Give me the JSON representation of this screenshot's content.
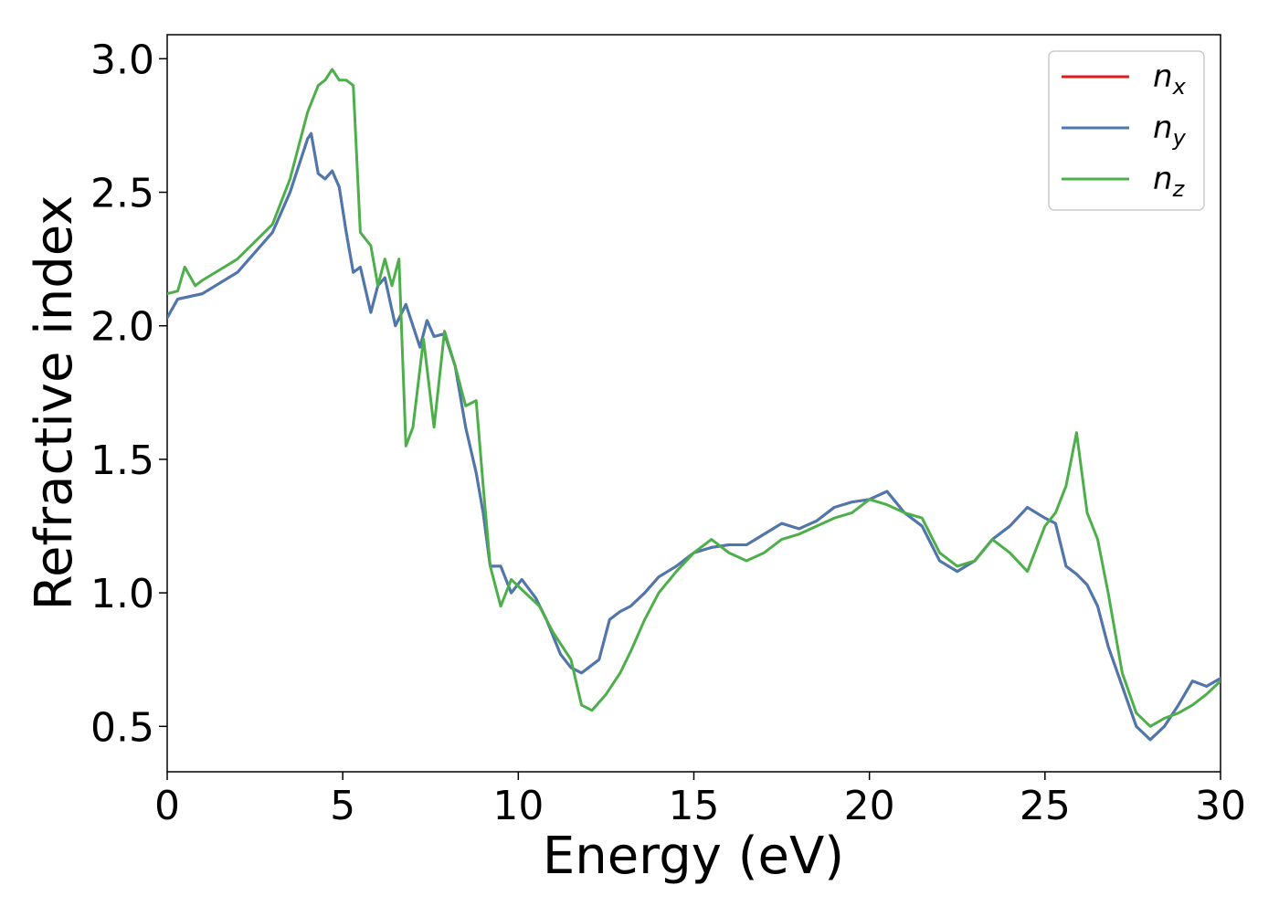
{
  "chart_data": {
    "type": "line",
    "title": "",
    "xlabel": "Energy (eV)",
    "ylabel": "Refractive index",
    "xlim": [
      0,
      30
    ],
    "ylim": [
      0.33,
      3.09
    ],
    "xticks": [
      0,
      5,
      10,
      15,
      20,
      25,
      30
    ],
    "xtick_labels": [
      "0",
      "5",
      "10",
      "15",
      "20",
      "25",
      "30"
    ],
    "yticks": [
      0.5,
      1.0,
      1.5,
      2.0,
      2.5,
      3.0
    ],
    "ytick_labels": [
      "0.5",
      "1.0",
      "1.5",
      "2.0",
      "2.5",
      "3.0"
    ],
    "grid": false,
    "legend_position": "top-right",
    "series": [
      {
        "name": "n_x",
        "label_base": "n",
        "label_sub": "x",
        "color": "#e41a1c",
        "x": [
          0,
          0.3,
          1,
          2,
          3,
          3.5,
          4,
          4.1,
          4.3,
          4.5,
          4.7,
          4.9,
          5.1,
          5.3,
          5.5,
          5.8,
          6,
          6.2,
          6.5,
          6.8,
          7.2,
          7.4,
          7.6,
          7.9,
          8.2,
          8.5,
          8.8,
          9,
          9.2,
          9.5,
          9.8,
          10.1,
          10.5,
          10.8,
          11.2,
          11.5,
          11.8,
          12,
          12.3,
          12.6,
          12.9,
          13.2,
          13.6,
          14,
          14.5,
          15,
          15.5,
          16,
          16.5,
          17,
          17.5,
          18,
          18.5,
          19,
          19.5,
          20,
          20.5,
          21,
          21.5,
          22,
          22.5,
          23,
          23.5,
          24,
          24.5,
          25,
          25.3,
          25.6,
          25.9,
          26.2,
          26.5,
          26.8,
          27.2,
          27.6,
          28,
          28.4,
          28.8,
          29.2,
          29.6,
          30
        ],
        "y": [
          2.03,
          2.1,
          2.12,
          2.2,
          2.35,
          2.5,
          2.7,
          2.72,
          2.57,
          2.55,
          2.58,
          2.52,
          2.35,
          2.2,
          2.22,
          2.05,
          2.15,
          2.18,
          2.0,
          2.08,
          1.92,
          2.02,
          1.96,
          1.97,
          1.85,
          1.62,
          1.45,
          1.3,
          1.1,
          1.1,
          1.0,
          1.05,
          0.98,
          0.9,
          0.77,
          0.72,
          0.7,
          0.72,
          0.75,
          0.9,
          0.93,
          0.95,
          1.0,
          1.06,
          1.1,
          1.15,
          1.17,
          1.18,
          1.18,
          1.22,
          1.26,
          1.24,
          1.27,
          1.32,
          1.34,
          1.35,
          1.38,
          1.3,
          1.25,
          1.12,
          1.08,
          1.12,
          1.2,
          1.25,
          1.32,
          1.28,
          1.26,
          1.1,
          1.07,
          1.03,
          0.95,
          0.8,
          0.65,
          0.5,
          0.45,
          0.5,
          0.58,
          0.67,
          0.65,
          0.68
        ]
      },
      {
        "name": "n_y",
        "label_base": "n",
        "label_sub": "y",
        "color": "#4a78b0",
        "x": [
          0,
          0.3,
          1,
          2,
          3,
          3.5,
          4,
          4.1,
          4.3,
          4.5,
          4.7,
          4.9,
          5.1,
          5.3,
          5.5,
          5.8,
          6,
          6.2,
          6.5,
          6.8,
          7.2,
          7.4,
          7.6,
          7.9,
          8.2,
          8.5,
          8.8,
          9,
          9.2,
          9.5,
          9.8,
          10.1,
          10.5,
          10.8,
          11.2,
          11.5,
          11.8,
          12,
          12.3,
          12.6,
          12.9,
          13.2,
          13.6,
          14,
          14.5,
          15,
          15.5,
          16,
          16.5,
          17,
          17.5,
          18,
          18.5,
          19,
          19.5,
          20,
          20.5,
          21,
          21.5,
          22,
          22.5,
          23,
          23.5,
          24,
          24.5,
          25,
          25.3,
          25.6,
          25.9,
          26.2,
          26.5,
          26.8,
          27.2,
          27.6,
          28,
          28.4,
          28.8,
          29.2,
          29.6,
          30
        ],
        "y": [
          2.03,
          2.1,
          2.12,
          2.2,
          2.35,
          2.5,
          2.7,
          2.72,
          2.57,
          2.55,
          2.58,
          2.52,
          2.35,
          2.2,
          2.22,
          2.05,
          2.15,
          2.18,
          2.0,
          2.08,
          1.92,
          2.02,
          1.96,
          1.97,
          1.85,
          1.62,
          1.45,
          1.3,
          1.1,
          1.1,
          1.0,
          1.05,
          0.98,
          0.9,
          0.77,
          0.72,
          0.7,
          0.72,
          0.75,
          0.9,
          0.93,
          0.95,
          1.0,
          1.06,
          1.1,
          1.15,
          1.17,
          1.18,
          1.18,
          1.22,
          1.26,
          1.24,
          1.27,
          1.32,
          1.34,
          1.35,
          1.38,
          1.3,
          1.25,
          1.12,
          1.08,
          1.12,
          1.2,
          1.25,
          1.32,
          1.28,
          1.26,
          1.1,
          1.07,
          1.03,
          0.95,
          0.8,
          0.65,
          0.5,
          0.45,
          0.5,
          0.58,
          0.67,
          0.65,
          0.68
        ]
      },
      {
        "name": "n_z",
        "label_base": "n",
        "label_sub": "z",
        "color": "#4daf4a",
        "x": [
          0,
          0.3,
          0.5,
          0.8,
          1,
          2,
          3,
          3.5,
          4,
          4.3,
          4.5,
          4.7,
          4.9,
          5.1,
          5.3,
          5.5,
          5.8,
          6,
          6.2,
          6.4,
          6.6,
          6.8,
          7,
          7.3,
          7.6,
          7.9,
          8.2,
          8.5,
          8.8,
          9,
          9.2,
          9.5,
          9.8,
          10.2,
          10.6,
          11,
          11.5,
          11.8,
          12.1,
          12.5,
          12.9,
          13.2,
          13.6,
          14,
          14.5,
          15,
          15.5,
          16,
          16.5,
          17,
          17.5,
          18,
          18.5,
          19,
          19.5,
          20,
          20.5,
          21,
          21.5,
          22,
          22.5,
          23,
          23.5,
          24,
          24.5,
          25,
          25.3,
          25.6,
          25.9,
          26.2,
          26.5,
          26.8,
          27.2,
          27.6,
          28,
          28.4,
          28.8,
          29.2,
          29.6,
          30
        ],
        "y": [
          2.12,
          2.13,
          2.22,
          2.15,
          2.17,
          2.25,
          2.38,
          2.55,
          2.8,
          2.9,
          2.92,
          2.96,
          2.92,
          2.92,
          2.9,
          2.35,
          2.3,
          2.15,
          2.25,
          2.15,
          2.25,
          1.55,
          1.62,
          1.95,
          1.62,
          1.98,
          1.85,
          1.7,
          1.72,
          1.4,
          1.1,
          0.95,
          1.05,
          1.0,
          0.95,
          0.85,
          0.75,
          0.58,
          0.56,
          0.62,
          0.7,
          0.78,
          0.9,
          1.0,
          1.08,
          1.15,
          1.2,
          1.15,
          1.12,
          1.15,
          1.2,
          1.22,
          1.25,
          1.28,
          1.3,
          1.35,
          1.33,
          1.3,
          1.28,
          1.15,
          1.1,
          1.12,
          1.2,
          1.15,
          1.08,
          1.25,
          1.3,
          1.4,
          1.6,
          1.3,
          1.2,
          1.0,
          0.7,
          0.55,
          0.5,
          0.53,
          0.55,
          0.58,
          0.62,
          0.67
        ]
      }
    ]
  }
}
